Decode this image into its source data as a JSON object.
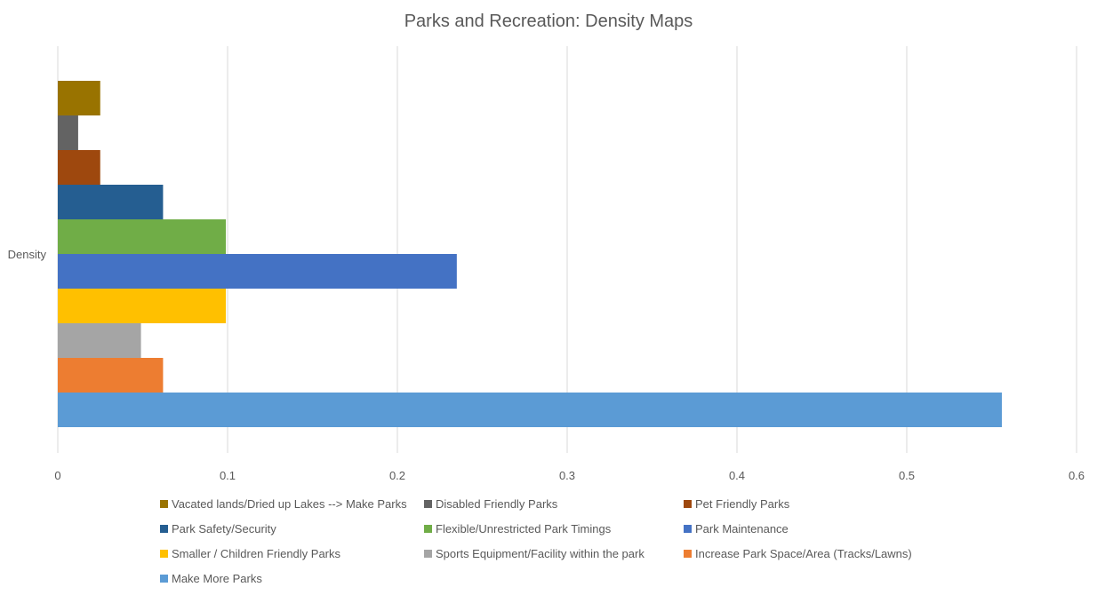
{
  "chart_data": {
    "type": "bar",
    "orientation": "horizontal",
    "title": "Parks and Recreation: Density Maps",
    "categories": [
      "Density"
    ],
    "xlim": [
      0,
      0.6
    ],
    "xticks": [
      "0",
      "0.1",
      "0.2",
      "0.3",
      "0.4",
      "0.5",
      "0.6"
    ],
    "xtick_values": [
      0,
      0.1,
      0.2,
      0.3,
      0.4,
      0.5,
      0.6
    ],
    "grid": true,
    "legend_position": "bottom",
    "series": [
      {
        "name": "Make More Parks",
        "values": [
          0.556
        ],
        "color": "#5B9BD5"
      },
      {
        "name": "Increase Park Space/Area (Tracks/Lawns)",
        "values": [
          0.062
        ],
        "color": "#ED7D31"
      },
      {
        "name": "Sports Equipment/Facility within the park",
        "values": [
          0.049
        ],
        "color": "#A5A5A5"
      },
      {
        "name": "Smaller / Children Friendly Parks",
        "values": [
          0.099
        ],
        "color": "#FFC000"
      },
      {
        "name": "Park Maintenance",
        "values": [
          0.235
        ],
        "color": "#4472C4"
      },
      {
        "name": "Flexible/Unrestricted Park Timings",
        "values": [
          0.099
        ],
        "color": "#70AD47"
      },
      {
        "name": "Park Safety/Security",
        "values": [
          0.062
        ],
        "color": "#255E91"
      },
      {
        "name": "Pet Friendly Parks",
        "values": [
          0.025
        ],
        "color": "#9E480E"
      },
      {
        "name": "Disabled Friendly Parks",
        "values": [
          0.012
        ],
        "color": "#636363"
      },
      {
        "name": "Vacated lands/Dried up Lakes --> Make Parks",
        "values": [
          0.025
        ],
        "color": "#997300"
      }
    ],
    "legend_order": [
      "Vacated lands/Dried up Lakes --> Make Parks",
      "Disabled Friendly Parks",
      "Pet Friendly Parks",
      "Park Safety/Security",
      "Flexible/Unrestricted Park Timings",
      "Park Maintenance",
      "Smaller / Children Friendly Parks",
      "Sports Equipment/Facility within the park",
      "Increase Park Space/Area (Tracks/Lawns)",
      "Make More Parks"
    ]
  }
}
